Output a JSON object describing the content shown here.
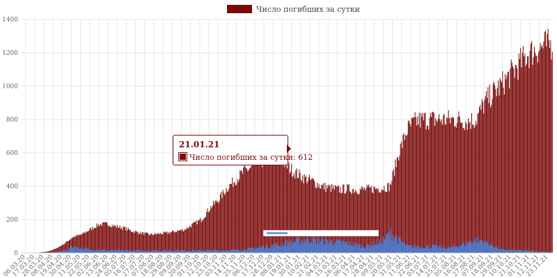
{
  "legend": {
    "label": "Число погибших за сутки",
    "color": "#7b0a0a"
  },
  "tooltip": {
    "date": "21.01.21",
    "series": "Число погибших за сутки",
    "value": 612,
    "text": "Число погибших за сутки: 612"
  },
  "colors": {
    "bar": "#7b0a0a",
    "overlay": "#3b82e6",
    "grid": "#e6e6e6",
    "axis_text": "#666666"
  },
  "chart_data": {
    "type": "bar",
    "ylim": [
      0,
      1400
    ],
    "yticks": [
      0,
      200,
      400,
      600,
      800,
      1000,
      1200,
      1400
    ],
    "grid": true,
    "legend_position": "top-center",
    "x_tick_labels": [
      "06.03.20",
      "17.03.20",
      "28.03.20",
      "08.04.20",
      "19.04.20",
      "30.04.20",
      "11.05.20",
      "22.05.20",
      "02.06.20",
      "13.06.20",
      "24.06.20",
      "05.07.20",
      "16.07.20",
      "27.07.20",
      "07.08.20",
      "18.08.20",
      "29.08.20",
      "09.09.20",
      "20.09.20",
      "01.10.20",
      "12.10.20",
      "23.10.20",
      "03.11.20",
      "14.11.20",
      "25.11.20",
      "06.12.20",
      "17.12.20",
      "28.12.20",
      "08.01.21",
      "19.01.21",
      "30.01.21",
      "10.02.21",
      "21.02.21",
      "04.03.21",
      "15.03.21",
      "26.03.21",
      "06.04.21",
      "17.04.21",
      "28.04.21",
      "09.05.21",
      "20.05.21",
      "31.05.21",
      "11.06.21",
      "22.06.21",
      "03.07.21",
      "14.07.21",
      "25.07.21",
      "05.08.21",
      "16.08.21",
      "27.08.21",
      "07.09.21",
      "18.09.21",
      "29.09.21",
      "10.10.21",
      "21.10.21",
      "01.11.21",
      "12.11.21",
      "23.11.21"
    ],
    "series": [
      {
        "name": "Число погибших за сутки",
        "anchors": [
          [
            0,
            0
          ],
          [
            8,
            0
          ],
          [
            20,
            2
          ],
          [
            30,
            8
          ],
          [
            40,
            25
          ],
          [
            50,
            55
          ],
          [
            60,
            95
          ],
          [
            70,
            110
          ],
          [
            80,
            140
          ],
          [
            90,
            170
          ],
          [
            100,
            175
          ],
          [
            110,
            160
          ],
          [
            120,
            150
          ],
          [
            130,
            130
          ],
          [
            140,
            120
          ],
          [
            150,
            110
          ],
          [
            160,
            115
          ],
          [
            170,
            120
          ],
          [
            180,
            130
          ],
          [
            190,
            140
          ],
          [
            200,
            170
          ],
          [
            210,
            200
          ],
          [
            220,
            270
          ],
          [
            230,
            320
          ],
          [
            240,
            390
          ],
          [
            250,
            440
          ],
          [
            260,
            490
          ],
          [
            270,
            520
          ],
          [
            280,
            550
          ],
          [
            290,
            560
          ],
          [
            296,
            600
          ],
          [
            300,
            580
          ],
          [
            310,
            520
          ],
          [
            320,
            480
          ],
          [
            330,
            450
          ],
          [
            340,
            430
          ],
          [
            350,
            400
          ],
          [
            360,
            390
          ],
          [
            370,
            380
          ],
          [
            380,
            385
          ],
          [
            390,
            380
          ],
          [
            400,
            380
          ],
          [
            420,
            390
          ],
          [
            430,
            400
          ],
          [
            440,
            600
          ],
          [
            450,
            740
          ],
          [
            460,
            790
          ],
          [
            470,
            800
          ],
          [
            480,
            800
          ],
          [
            490,
            800
          ],
          [
            500,
            800
          ],
          [
            510,
            800
          ],
          [
            520,
            790
          ],
          [
            530,
            800
          ],
          [
            540,
            900
          ],
          [
            550,
            960
          ],
          [
            560,
            1010
          ],
          [
            570,
            1070
          ],
          [
            580,
            1130
          ],
          [
            590,
            1190
          ],
          [
            600,
            1220
          ],
          [
            610,
            1245
          ],
          [
            619,
            1250
          ]
        ],
        "noise": 0.08
      },
      {
        "name": "",
        "anchors": [
          [
            0,
            0
          ],
          [
            40,
            5
          ],
          [
            55,
            20
          ],
          [
            60,
            40
          ],
          [
            70,
            30
          ],
          [
            80,
            20
          ],
          [
            90,
            20
          ],
          [
            100,
            15
          ],
          [
            140,
            15
          ],
          [
            200,
            15
          ],
          [
            230,
            15
          ],
          [
            260,
            20
          ],
          [
            300,
            50
          ],
          [
            330,
            80
          ],
          [
            350,
            75
          ],
          [
            380,
            60
          ],
          [
            400,
            40
          ],
          [
            420,
            70
          ],
          [
            430,
            120
          ],
          [
            440,
            80
          ],
          [
            450,
            40
          ],
          [
            480,
            40
          ],
          [
            500,
            30
          ],
          [
            520,
            60
          ],
          [
            530,
            80
          ],
          [
            540,
            70
          ],
          [
            560,
            20
          ],
          [
            600,
            10
          ],
          [
            619,
            5
          ]
        ],
        "noise": 0.35
      }
    ],
    "bar_count": 620,
    "highlight": {
      "label": "21.01.21",
      "value": 612,
      "index": 306
    }
  }
}
